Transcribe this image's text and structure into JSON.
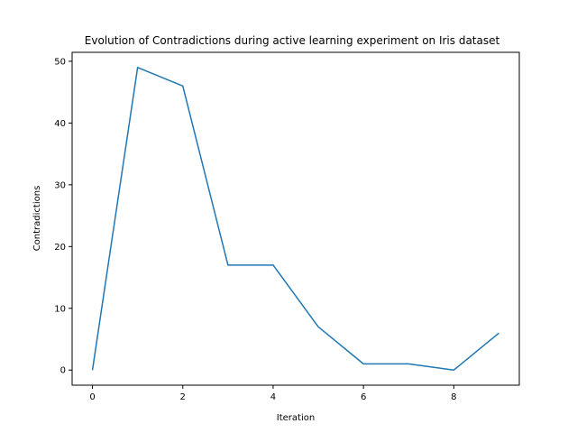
{
  "chart_data": {
    "type": "line",
    "title": "Evolution of Contradictions during active learning experiment on Iris dataset",
    "xlabel": "Iteration",
    "ylabel": "Contradictions",
    "x": [
      0,
      1,
      2,
      3,
      4,
      5,
      6,
      7,
      8,
      9
    ],
    "series": [
      {
        "values": [
          0,
          49,
          46,
          17,
          17,
          7,
          1,
          1,
          0,
          6
        ],
        "color": "#1f77b4"
      }
    ],
    "xticks": [
      0,
      2,
      4,
      6,
      8
    ],
    "xtick_labels": [
      "0",
      "2",
      "4",
      "6",
      "8"
    ],
    "yticks": [
      0,
      10,
      20,
      30,
      40,
      50
    ],
    "ytick_labels": [
      "0",
      "10",
      "20",
      "30",
      "40",
      "50"
    ],
    "xlim": [
      -0.45,
      9.45
    ],
    "ylim": [
      -2.45,
      51.45
    ],
    "grid": false,
    "legend": "none"
  }
}
